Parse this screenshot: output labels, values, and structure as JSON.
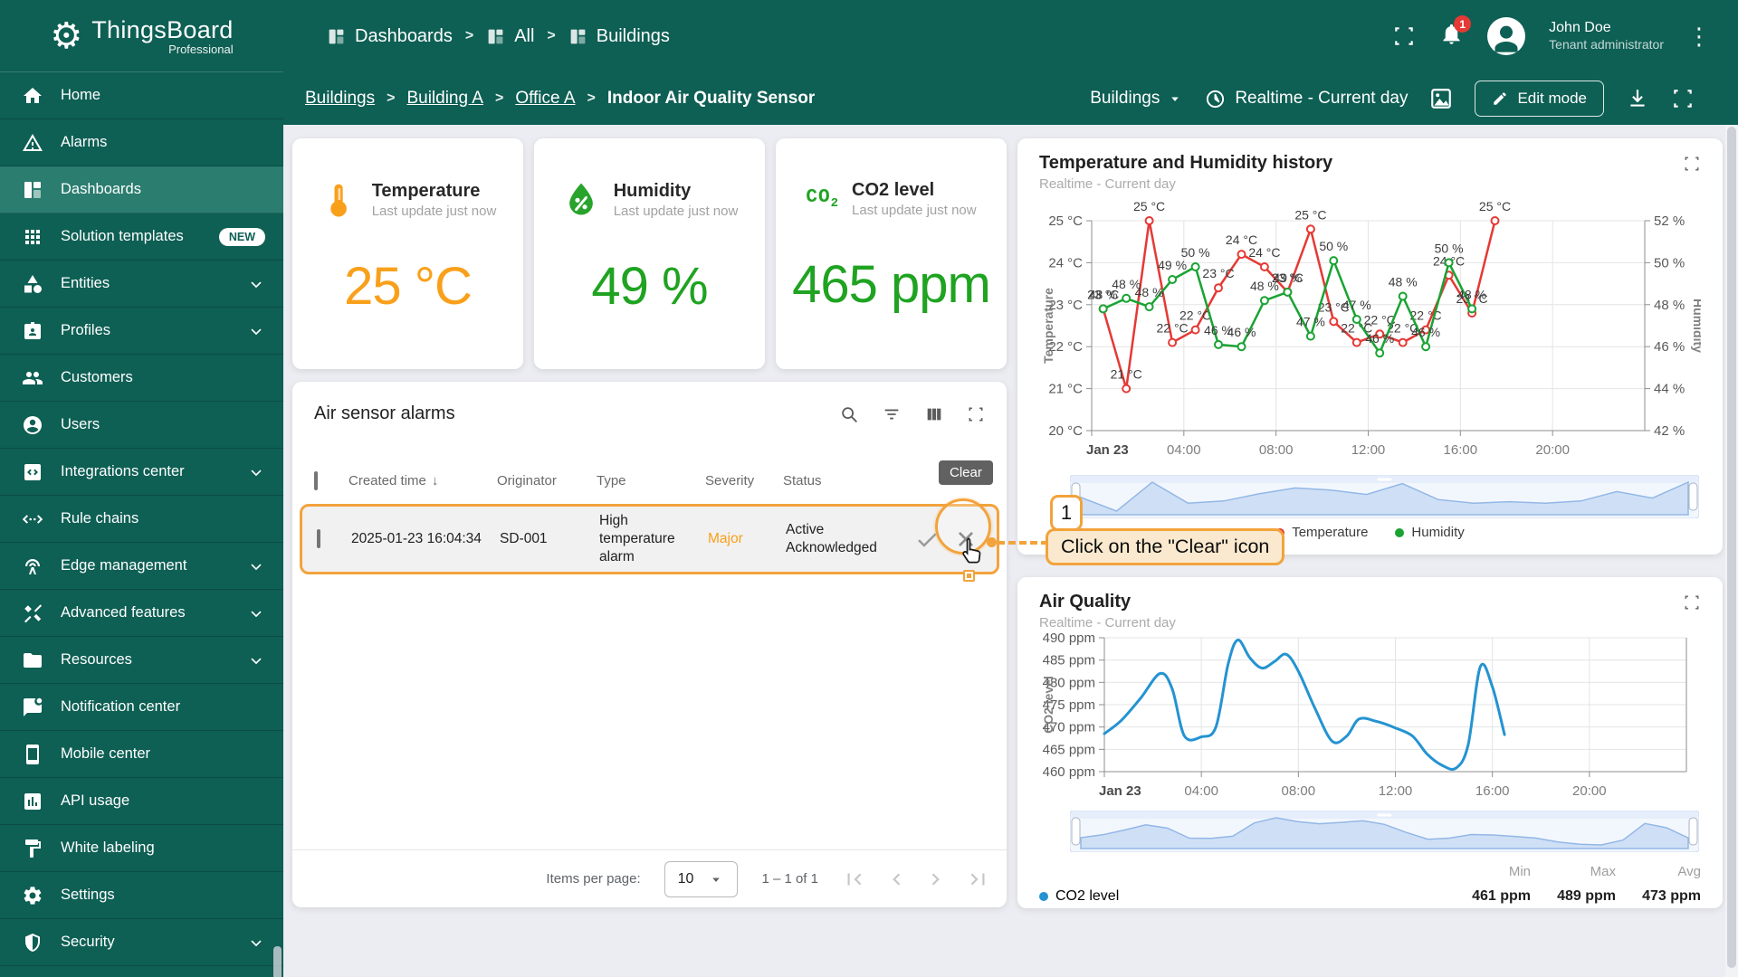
{
  "colors": {
    "teal": "#0E5F54",
    "teal_active": "#2A7D6F",
    "orange": "#F9A01B",
    "annotation_orange": "#F2A33C",
    "green": "#1FA321",
    "red": "#E53935",
    "blue": "#2493D1",
    "badge_red": "#E53935"
  },
  "app": {
    "brand": "ThingsBoard",
    "brand_sub": "Professional"
  },
  "top_nav": {
    "breadcrumb": [
      {
        "label": "Dashboards",
        "icon": "dashboards-icon"
      },
      {
        "label": "All",
        "icon": "dashboards-icon"
      },
      {
        "label": "Buildings",
        "icon": "dashboards-icon"
      }
    ],
    "notifications_badge": "1",
    "user": {
      "name": "John Doe",
      "role": "Tenant administrator"
    }
  },
  "dashboard_bar": {
    "breadcrumb": [
      "Buildings",
      "Building A",
      "Office A",
      "Indoor Air Quality Sensor"
    ],
    "state_select": "Buildings",
    "time_window": "Realtime - Current day",
    "edit_button": "Edit mode"
  },
  "sidebar": {
    "items": [
      {
        "label": "Home",
        "icon": "home-icon"
      },
      {
        "label": "Alarms",
        "icon": "alarms-icon"
      },
      {
        "label": "Dashboards",
        "icon": "dashboards-icon",
        "active": true
      },
      {
        "label": "Solution templates",
        "icon": "templates-icon",
        "badge": "NEW"
      },
      {
        "label": "Entities",
        "icon": "entities-icon",
        "expandable": true
      },
      {
        "label": "Profiles",
        "icon": "profiles-icon",
        "expandable": true
      },
      {
        "label": "Customers",
        "icon": "customers-icon"
      },
      {
        "label": "Users",
        "icon": "users-icon"
      },
      {
        "label": "Integrations center",
        "icon": "integrations-icon",
        "expandable": true
      },
      {
        "label": "Rule chains",
        "icon": "rule-chains-icon"
      },
      {
        "label": "Edge management",
        "icon": "edge-icon",
        "expandable": true
      },
      {
        "label": "Advanced features",
        "icon": "advanced-icon",
        "expandable": true
      },
      {
        "label": "Resources",
        "icon": "resources-icon",
        "expandable": true
      },
      {
        "label": "Notification center",
        "icon": "notification-icon"
      },
      {
        "label": "Mobile center",
        "icon": "mobile-icon"
      },
      {
        "label": "API usage",
        "icon": "api-icon"
      },
      {
        "label": "White labeling",
        "icon": "white-labeling-icon"
      },
      {
        "label": "Settings",
        "icon": "settings-icon"
      },
      {
        "label": "Security",
        "icon": "security-icon",
        "expandable": true
      }
    ]
  },
  "cards": {
    "temperature": {
      "title": "Temperature",
      "subtitle": "Last update just now",
      "value": "25 °C",
      "icon": "thermometer-icon",
      "color": "#F9A01B"
    },
    "humidity": {
      "title": "Humidity",
      "subtitle": "Last update just now",
      "value": "49 %",
      "icon": "humidity-drop-icon",
      "color": "#1FA321"
    },
    "co2": {
      "title": "CO2 level",
      "subtitle": "Last update just now",
      "value": "465 ppm",
      "icon": "co2-icon",
      "color": "#1FA321"
    }
  },
  "alarms_table": {
    "title": "Air sensor alarms",
    "headers": [
      "Created time",
      "Originator",
      "Type",
      "Severity",
      "Status"
    ],
    "rows": [
      {
        "created_time": "2025-01-23 16:04:34",
        "originator": "SD-001",
        "type": "High temperature alarm",
        "severity": "Major",
        "status": "Active Acknowledged"
      }
    ],
    "tooltip_clear": "Clear",
    "pagination": {
      "items_per_page_label": "Items per page:",
      "page_size": "10",
      "range": "1 – 1 of 1"
    }
  },
  "annotation": {
    "step": "1",
    "label": "Click on the \"Clear\" icon"
  },
  "chart_data": [
    {
      "id": "temperature-humidity-history",
      "type": "line",
      "title": "Temperature and Humidity history",
      "subtitle": "Realtime - Current day",
      "x_range": [
        0,
        24
      ],
      "x_ticks": [
        {
          "pos": 0,
          "label": "Jan 23"
        },
        {
          "pos": 4,
          "label": "04:00"
        },
        {
          "pos": 8,
          "label": "08:00"
        },
        {
          "pos": 12,
          "label": "12:00"
        },
        {
          "pos": 16,
          "label": "16:00"
        },
        {
          "pos": 20,
          "label": "20:00"
        }
      ],
      "left_axis": {
        "title": "Temperature",
        "unit": "°C",
        "min": 20,
        "max": 25,
        "step": 1
      },
      "right_axis": {
        "title": "Humidity",
        "unit": "%",
        "min": 42,
        "max": 52,
        "step": 2
      },
      "grid": true,
      "legend_position": "bottom",
      "series": [
        {
          "name": "Temperature",
          "color": "#e53935",
          "axis": "left",
          "x": [
            0.5,
            1.5,
            2.5,
            3.5,
            4.5,
            5.5,
            6.5,
            7.5,
            8.5,
            9.5,
            10.5,
            11.5,
            12.5,
            13.5,
            14.5,
            15.5,
            16.5,
            17.5
          ],
          "values": [
            22.9,
            21,
            25,
            22.1,
            22.4,
            23.4,
            24.2,
            23.9,
            23.3,
            24.8,
            22.6,
            22.1,
            22.3,
            22.1,
            22.4,
            23.7,
            22.8,
            25
          ],
          "labels": [
            "23 °C",
            "21 °C",
            "25 °C",
            "22 °C",
            "22 °C",
            "23 °C",
            "24 °C",
            "24 °C",
            "23 °C",
            "25 °C",
            "23 °C",
            "22 °C",
            "22 °C",
            "22 °C",
            "22 °C",
            "24 °C",
            "23 °C",
            "25 °C"
          ]
        },
        {
          "name": "Humidity",
          "color": "#1aa333",
          "axis": "right",
          "x": [
            0.5,
            1.5,
            2.5,
            3.5,
            4.5,
            5.5,
            6.5,
            7.5,
            8.5,
            9.5,
            10.5,
            11.5,
            12.5,
            13.5,
            14.5,
            15.5,
            16.5
          ],
          "values": [
            47.8,
            48.3,
            47.9,
            49.2,
            49.8,
            46.1,
            46,
            48.2,
            48.6,
            46.5,
            50.1,
            47.3,
            45.7,
            48.4,
            46,
            50,
            47.8
          ],
          "labels": [
            "48 %",
            "48 %",
            "48 %",
            "49 %",
            "50 %",
            "46 %",
            "46 %",
            "48 %",
            "49 %",
            "47 %",
            "50 %",
            "47 %",
            "46 %",
            "48 %",
            "46 %",
            "50 %",
            "48 %"
          ]
        }
      ]
    },
    {
      "id": "air-quality",
      "type": "line",
      "title": "Air Quality",
      "subtitle": "Realtime - Current day",
      "x_range": [
        0,
        24
      ],
      "x_ticks": [
        {
          "pos": 0,
          "label": "Jan 23"
        },
        {
          "pos": 4,
          "label": "04:00"
        },
        {
          "pos": 8,
          "label": "08:00"
        },
        {
          "pos": 12,
          "label": "12:00"
        },
        {
          "pos": 16,
          "label": "16:00"
        },
        {
          "pos": 20,
          "label": "20:00"
        }
      ],
      "left_axis": {
        "title": "CO2 level",
        "unit": "ppm",
        "min": 460,
        "max": 490,
        "step": 5
      },
      "grid": true,
      "legend_position": "bottom-left",
      "series": [
        {
          "name": "CO2 level",
          "color": "#2493d1",
          "axis": "left",
          "smooth": true,
          "x": [
            0,
            0.7,
            1.5,
            2.3,
            2.8,
            3.3,
            4,
            4.6,
            5.1,
            5.5,
            6,
            6.5,
            7,
            7.5,
            8,
            8.7,
            9.4,
            10,
            10.5,
            11.2,
            12,
            12.7,
            13.3,
            13.9,
            14.5,
            15,
            15.5,
            16,
            16.5
          ],
          "values": [
            468.5,
            471.5,
            476.5,
            482,
            478.5,
            468,
            467.8,
            470,
            484,
            489.5,
            485.5,
            483.2,
            484.6,
            486.3,
            482.5,
            474,
            466.8,
            468,
            471.8,
            471.3,
            469.8,
            468,
            464,
            461.5,
            460.8,
            466,
            483.5,
            479,
            468.3
          ]
        }
      ],
      "stats": {
        "headers": [
          "Min",
          "Max",
          "Avg"
        ],
        "values": [
          "461 ppm",
          "489 ppm",
          "473 ppm"
        ]
      }
    }
  ]
}
